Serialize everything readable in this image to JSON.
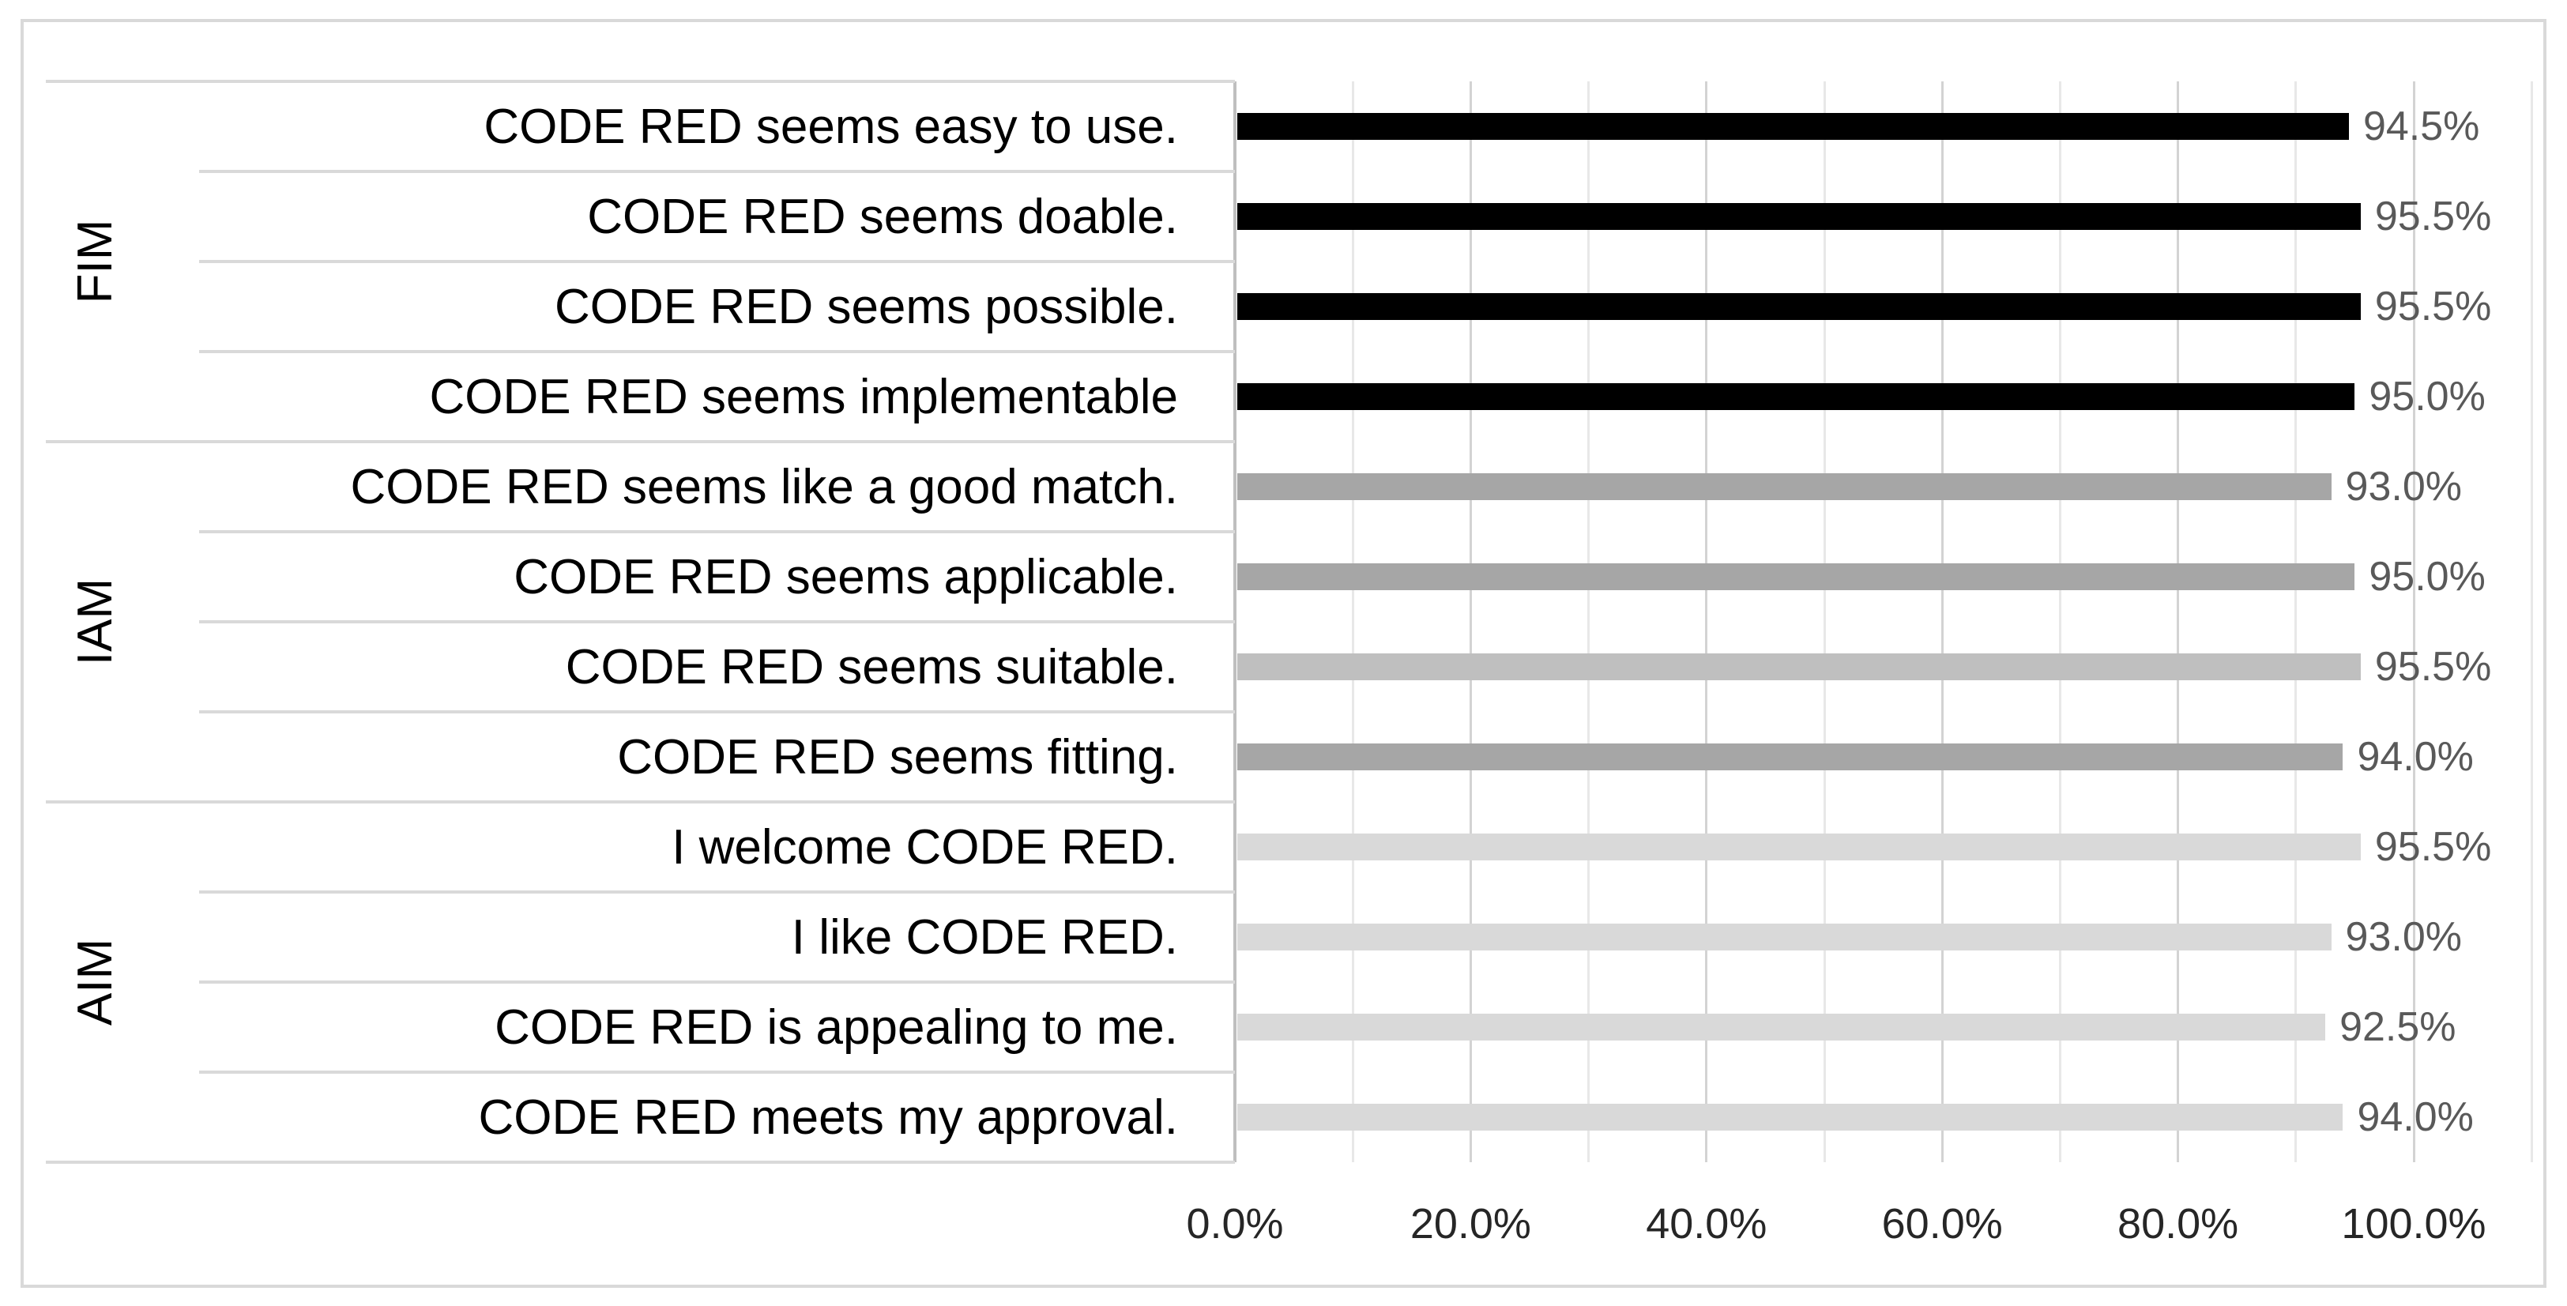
{
  "chart_data": {
    "type": "bar",
    "orientation": "horizontal",
    "title": "",
    "xlabel": "",
    "ylabel": "",
    "legend": "none",
    "axis": {
      "min": 0,
      "max": 110,
      "major_unit": 20,
      "minor_unit": 10,
      "grid": true,
      "tick_labels": [
        {
          "value": 0,
          "label": "0.0%"
        },
        {
          "value": 20,
          "label": "20.0%"
        },
        {
          "value": 40,
          "label": "40.0%"
        },
        {
          "value": 60,
          "label": "60.0%"
        },
        {
          "value": 80,
          "label": "80.0%"
        },
        {
          "value": 100,
          "label": "100.0%"
        }
      ]
    },
    "groups": [
      {
        "name": "FIM",
        "items": [
          {
            "label": "CODE RED seems easy to use.",
            "value": 94.5,
            "display": "94.5%",
            "color": "#000000"
          },
          {
            "label": "CODE RED seems doable.",
            "value": 95.5,
            "display": "95.5%",
            "color": "#000000"
          },
          {
            "label": "CODE RED seems possible.",
            "value": 95.5,
            "display": "95.5%",
            "color": "#000000"
          },
          {
            "label": "CODE RED seems implementable",
            "value": 95.0,
            "display": "95.0%",
            "color": "#000000"
          }
        ]
      },
      {
        "name": "IAM",
        "items": [
          {
            "label": "CODE RED seems like a good match.",
            "value": 93.0,
            "display": "93.0%",
            "color": "#a6a6a6"
          },
          {
            "label": "CODE RED seems applicable.",
            "value": 95.0,
            "display": "95.0%",
            "color": "#a6a6a6"
          },
          {
            "label": "CODE RED seems suitable.",
            "value": 95.5,
            "display": "95.5%",
            "color": "#bfbfbf"
          },
          {
            "label": "CODE RED seems fitting.",
            "value": 94.0,
            "display": "94.0%",
            "color": "#a6a6a6"
          }
        ]
      },
      {
        "name": "AIM",
        "items": [
          {
            "label": "I welcome CODE RED.",
            "value": 95.5,
            "display": "95.5%",
            "color": "#d9d9d9"
          },
          {
            "label": "I like CODE RED.",
            "value": 93.0,
            "display": "93.0%",
            "color": "#d9d9d9"
          },
          {
            "label": "CODE RED is appealing to me.",
            "value": 92.5,
            "display": "92.5%",
            "color": "#d9d9d9"
          },
          {
            "label": "CODE RED meets my approval.",
            "value": 94.0,
            "display": "94.0%",
            "color": "#d9d9d9"
          }
        ]
      }
    ],
    "colors": {
      "data_label": "#595959",
      "axis_tick_label": "#262626",
      "category_label": "#000000",
      "gridline_major": "#d3d3d3",
      "gridline_minor": "#e8e8e8",
      "axis_line": "#bfbfbf",
      "separator_line": "#d9d9d9",
      "chart_border": "#d9d9d9",
      "background": "#ffffff"
    }
  }
}
